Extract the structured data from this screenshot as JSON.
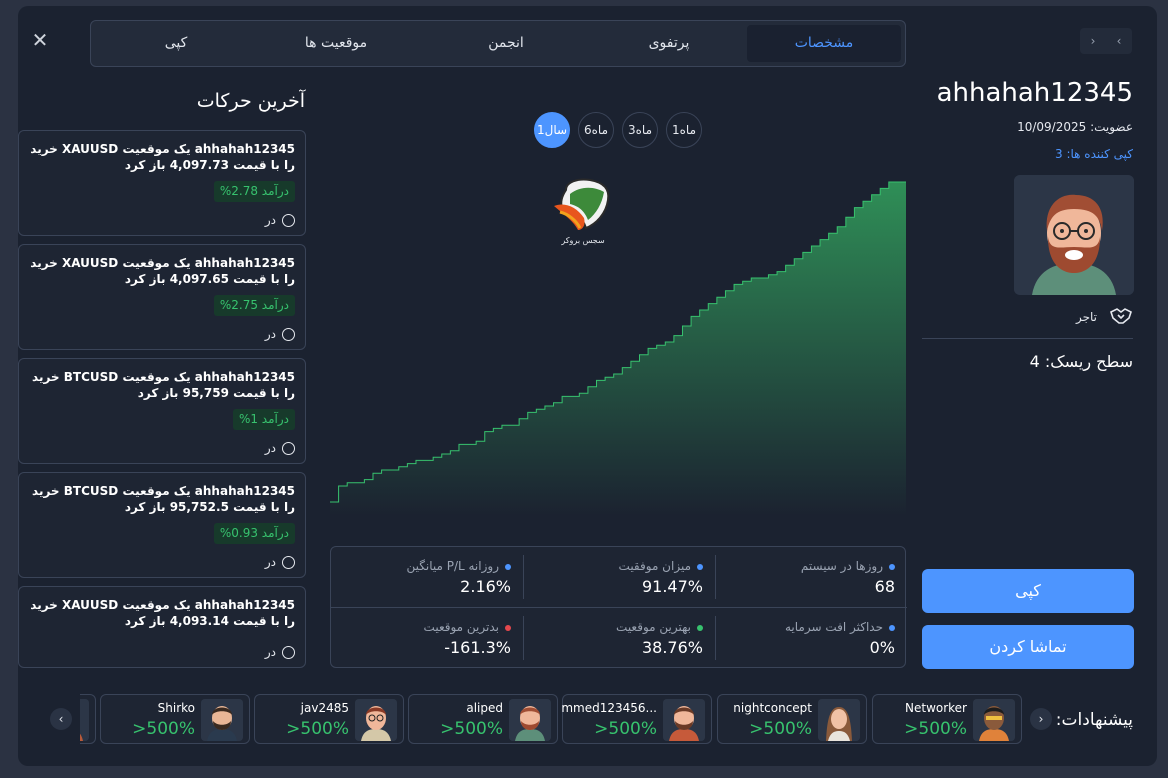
{
  "tabs": [
    {
      "label": "مشخصات",
      "active": true
    },
    {
      "label": "پرتفوی",
      "active": false
    },
    {
      "label": "انجمن",
      "active": false
    },
    {
      "label": "موقعیت ها",
      "active": false
    },
    {
      "label": "کپی",
      "active": false
    }
  ],
  "profile": {
    "username": "ahhahah12345",
    "membership": "عضویت: 10/09/2025",
    "copiers": "کپی کننده ها: 3",
    "role": "تاجر",
    "risk_level": "سطح ریسک: 4"
  },
  "actions": {
    "copy_button": "کپی",
    "watch_button": "تماشا کردن"
  },
  "periods": [
    {
      "label": "1سال",
      "active": true
    },
    {
      "label": "6ماه",
      "active": false
    },
    {
      "label": "3ماه",
      "active": false
    },
    {
      "label": "1ماه",
      "active": false
    }
  ],
  "logo": {
    "text": "سجس بروکر"
  },
  "stats": [
    {
      "label": "روزها در سیستم",
      "value": "68",
      "dot_color": "#4d95ff"
    },
    {
      "label": "میزان موفقیت",
      "value": "91.47%",
      "dot_color": "#4d95ff"
    },
    {
      "label": "روزانه P/L میانگین",
      "value": "2.16%",
      "dot_color": "#4d95ff"
    },
    {
      "label": "حداکثر افت سرمایه",
      "value": "0%",
      "dot_color": "#4d95ff"
    },
    {
      "label": "بهترین موقعیت",
      "value": "38.76%",
      "dot_color": "#37c26e"
    },
    {
      "label": "بدترین موقعیت",
      "value": "-161.3%",
      "dot_color": "#e5484d"
    }
  ],
  "activity": {
    "title": "آخرین حرکات",
    "items": [
      {
        "text": "ahhahah12345 یک موقعیت XAUUSD خرید را با قیمت 4,097.73 باز کرد",
        "income": "درآمد 2.78%",
        "time": "در"
      },
      {
        "text": "ahhahah12345 یک موقعیت XAUUSD خرید را با قیمت 4,097.65 باز کرد",
        "income": "درآمد 2.75%",
        "time": "در"
      },
      {
        "text": "ahhahah12345 یک موقعیت BTCUSD خرید را با قیمت 95,759 باز کرد",
        "income": "درآمد 1%",
        "time": "در"
      },
      {
        "text": "ahhahah12345 یک موقعیت BTCUSD خرید را با قیمت 95,752.5 باز کرد",
        "income": "درآمد 0.93%",
        "time": "در"
      },
      {
        "text": "ahhahah12345 یک موقعیت XAUUSD خرید را با قیمت 4,093.14 باز کرد",
        "income": "",
        "time": "در"
      }
    ]
  },
  "suggestions": {
    "label": "پیشنهادات:",
    "items": [
      {
        "name": "Networker",
        "value": ">500%"
      },
      {
        "name": "nightconcept",
        "value": ">500%"
      },
      {
        "name": "mmed123456...",
        "value": ">500%"
      },
      {
        "name": "aliped",
        "value": ">500%"
      },
      {
        "name": "jav2485",
        "value": ">500%"
      },
      {
        "name": "Shirko",
        "value": ">500%"
      }
    ]
  },
  "chart_data": {
    "type": "area",
    "title": "",
    "x": [
      0,
      1,
      2,
      3,
      4,
      5,
      6,
      7,
      8,
      9,
      10,
      11,
      12,
      13,
      14,
      15,
      16,
      17,
      18,
      19,
      20,
      21,
      22,
      23,
      24,
      25,
      26,
      27,
      28,
      29,
      30,
      31,
      32,
      33,
      34,
      35,
      36,
      37,
      38,
      39,
      40,
      41,
      42,
      43,
      44,
      45,
      46,
      47,
      48,
      49,
      50,
      51,
      52,
      53,
      54,
      55,
      56,
      57,
      58,
      59,
      60,
      61,
      62,
      63,
      64,
      65,
      66,
      67
    ],
    "values": [
      0,
      5,
      6,
      6,
      7,
      9,
      10,
      10,
      11,
      12,
      13,
      13,
      14,
      15,
      16,
      18,
      18,
      19,
      22,
      23,
      24,
      24,
      26,
      28,
      29,
      30,
      31,
      33,
      33,
      34,
      36,
      38,
      39,
      40,
      42,
      44,
      46,
      48,
      49,
      50,
      52,
      55,
      58,
      60,
      62,
      64,
      66,
      68,
      69,
      70,
      70,
      71,
      72,
      74,
      76,
      78,
      80,
      82,
      84,
      86,
      89,
      92,
      94,
      96,
      98,
      100,
      100,
      100
    ],
    "ylim": [
      0,
      100
    ],
    "color": "#37c26e"
  }
}
